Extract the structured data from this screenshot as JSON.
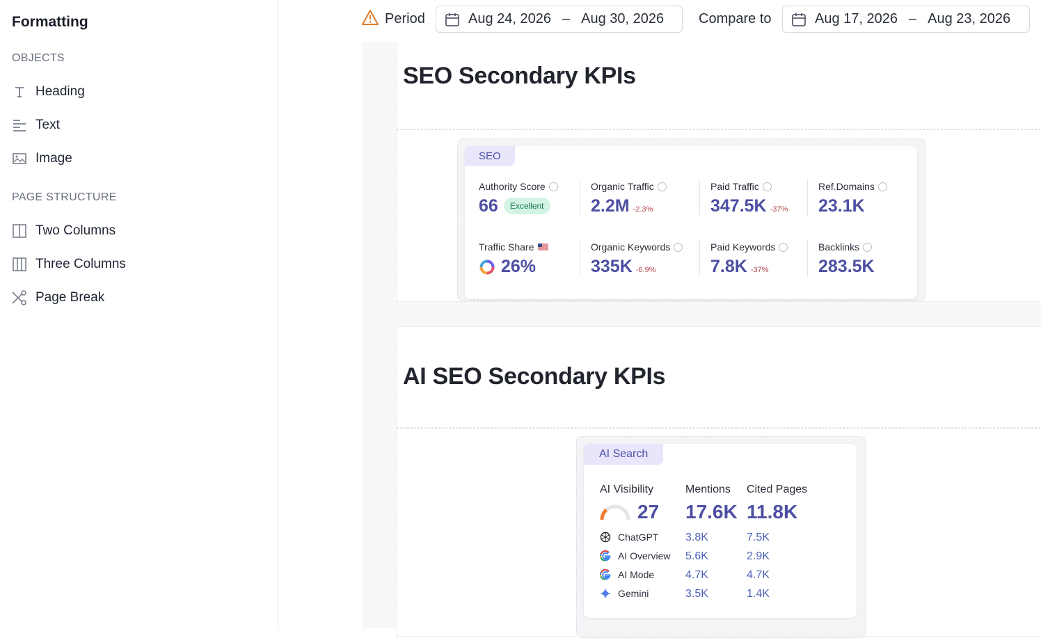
{
  "sidebar": {
    "title": "Formatting",
    "objects_header": "OBJECTS",
    "objects": [
      {
        "label": "Heading",
        "icon": "heading-icon"
      },
      {
        "label": "Text",
        "icon": "text-icon"
      },
      {
        "label": "Image",
        "icon": "image-icon"
      }
    ],
    "structure_header": "PAGE STRUCTURE",
    "structure": [
      {
        "label": "Two Columns",
        "icon": "two-columns-icon"
      },
      {
        "label": "Three Columns",
        "icon": "three-columns-icon"
      },
      {
        "label": "Page Break",
        "icon": "scissors-icon"
      }
    ]
  },
  "topbar": {
    "period_label": "Period",
    "period_start": "Aug 24, 2026",
    "period_end": "Aug 30, 2026",
    "compare_label": "Compare to",
    "compare_start": "Aug 17, 2026",
    "compare_end": "Aug 23, 2026",
    "dash": "–",
    "warning_color": "#e07b2a"
  },
  "seo_section": {
    "title": "SEO Secondary KPIs",
    "tag": "SEO",
    "kpis": {
      "authority": {
        "name": "Authority Score",
        "value": "66",
        "badge": "Excellent"
      },
      "organic_traffic": {
        "name": "Organic Traffic",
        "value": "2.2M",
        "delta": "-2.3%"
      },
      "paid_traffic": {
        "name": "Paid Traffic",
        "value": "347.5K",
        "delta": "-37%"
      },
      "ref_domains": {
        "name": "Ref.Domains",
        "value": "23.1K"
      },
      "traffic_share": {
        "name": "Traffic Share",
        "value": "26%"
      },
      "organic_keywords": {
        "name": "Organic Keywords",
        "value": "335K",
        "delta": "-6.9%"
      },
      "paid_keywords": {
        "name": "Paid Keywords",
        "value": "7.8K",
        "delta": "-37%"
      },
      "backlinks": {
        "name": "Backlinks",
        "value": "283.5K"
      }
    }
  },
  "ai_section": {
    "title": "AI SEO Secondary KPIs",
    "tag": "AI Search",
    "visibility_label": "AI Visibility",
    "visibility_value": "27",
    "visibility_fraction": 0.27,
    "mentions_label": "Mentions",
    "mentions_total": "17.6K",
    "cited_label": "Cited Pages",
    "cited_total": "11.8K",
    "rows": [
      {
        "name": "ChatGPT",
        "mentions": "3.8K",
        "cited": "7.5K"
      },
      {
        "name": "AI Overview",
        "mentions": "5.6K",
        "cited": "2.9K"
      },
      {
        "name": "AI Mode",
        "mentions": "4.7K",
        "cited": "4.7K"
      },
      {
        "name": "Gemini",
        "mentions": "3.5K",
        "cited": "1.4K"
      }
    ]
  },
  "colors": {
    "accent": "#4d4fa3",
    "delta_negative": "#b0454b",
    "badge_bg": "#d3f3e4"
  }
}
